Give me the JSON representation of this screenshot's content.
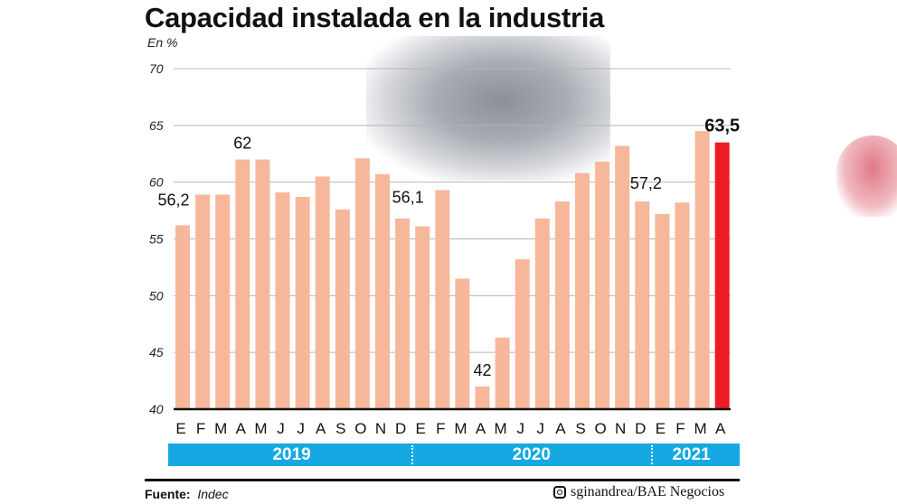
{
  "title": "Capacidad instalada en la industria",
  "unit": "En %",
  "chart_data": {
    "type": "bar",
    "title": "Capacidad instalada en la industria",
    "ylabel": "En %",
    "ylim": [
      40,
      70
    ],
    "yticks": [
      40,
      45,
      50,
      55,
      60,
      65,
      70
    ],
    "grid": true,
    "categories": [
      "E",
      "F",
      "M",
      "A",
      "M",
      "J",
      "J",
      "A",
      "S",
      "O",
      "N",
      "D",
      "E",
      "F",
      "M",
      "A",
      "M",
      "J",
      "J",
      "A",
      "S",
      "O",
      "N",
      "D",
      "E",
      "F",
      "M",
      "A"
    ],
    "years": [
      {
        "label": "2019",
        "count": 12
      },
      {
        "label": "2020",
        "count": 12
      },
      {
        "label": "2021",
        "count": 4
      }
    ],
    "values": [
      56.2,
      58.9,
      58.9,
      62,
      62,
      59.1,
      58.7,
      60.5,
      57.6,
      62.1,
      60.7,
      56.8,
      56.1,
      59.3,
      51.5,
      42,
      46.3,
      53.2,
      56.8,
      58.3,
      60.8,
      61.8,
      63.2,
      58.3,
      57.2,
      58.2,
      64.5,
      63.5
    ],
    "data_labels": [
      {
        "index": 0,
        "text": "56,2"
      },
      {
        "index": 3,
        "text": "62"
      },
      {
        "index": 12,
        "text": "56,1"
      },
      {
        "index": 15,
        "text": "42"
      },
      {
        "index": 24,
        "text": "57,2"
      },
      {
        "index": 27,
        "text": "63,5",
        "bold": true
      }
    ],
    "colors": {
      "bar": "#f7b79b",
      "highlight": "#ed1c24",
      "grid": "#b5b5b5",
      "year_band": "#15a8e3"
    }
  },
  "footer": {
    "source_label": "Fuente:",
    "source": "Indec",
    "credit": "sginandrea/BAE Negocios",
    "credit_icon": "instagram-icon"
  }
}
